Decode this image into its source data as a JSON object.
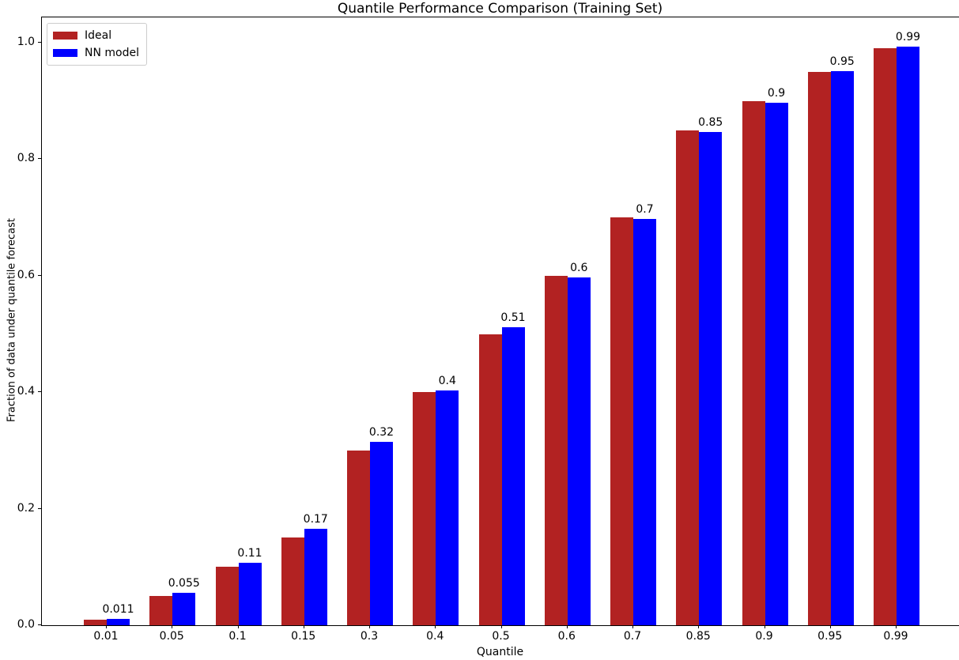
{
  "chart_data": {
    "type": "bar",
    "title": "Quantile Performance Comparison (Training Set)",
    "xlabel": "Quantile",
    "ylabel": "Fraction of data under quantile forecast",
    "categories": [
      "0.01",
      "0.05",
      "0.1",
      "0.15",
      "0.3",
      "0.4",
      "0.5",
      "0.6",
      "0.7",
      "0.85",
      "0.9",
      "0.95",
      "0.99"
    ],
    "series": [
      {
        "name": "Ideal",
        "color": "#b22222",
        "values": [
          0.01,
          0.05,
          0.1,
          0.15,
          0.3,
          0.4,
          0.5,
          0.6,
          0.7,
          0.85,
          0.9,
          0.95,
          0.99
        ]
      },
      {
        "name": "NN model",
        "color": "#0000ff",
        "values": [
          0.011,
          0.055,
          0.107,
          0.165,
          0.315,
          0.403,
          0.512,
          0.597,
          0.698,
          0.847,
          0.897,
          0.951,
          0.993
        ],
        "bar_labels": [
          "0.011",
          "0.055",
          "0.11",
          "0.17",
          "0.32",
          "0.4",
          "0.51",
          "0.6",
          "0.7",
          "0.85",
          "0.9",
          "0.95",
          "0.99"
        ]
      }
    ],
    "ylim": [
      0,
      1.043
    ],
    "yticks": [
      0,
      0.2,
      0.4,
      0.6,
      0.8,
      1.0
    ],
    "ytick_labels": [
      "0.0",
      "0.2",
      "0.4",
      "0.6",
      "0.8",
      "1.0"
    ],
    "grid": false,
    "legend": {
      "position": "upper left",
      "entries": [
        "Ideal",
        "NN model"
      ]
    }
  }
}
